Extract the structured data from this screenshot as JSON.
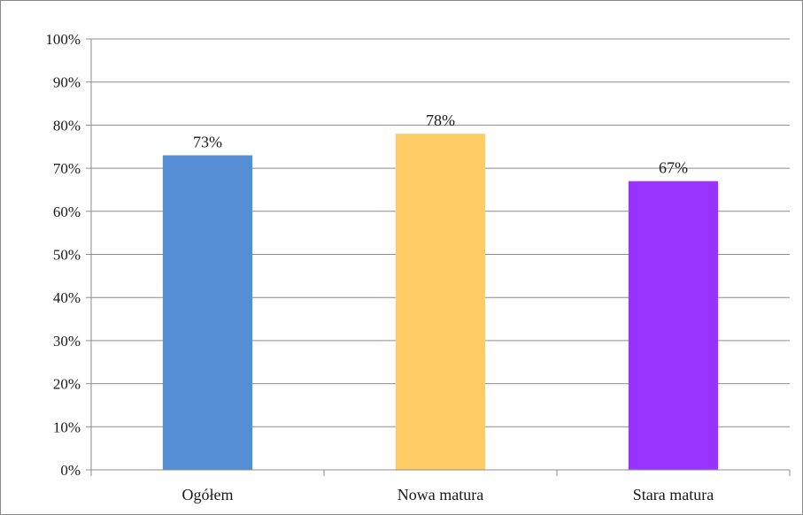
{
  "chart_data": {
    "type": "bar",
    "categories": [
      "Ogółem",
      "Nowa matura",
      "Stara matura"
    ],
    "values": [
      73,
      78,
      67
    ],
    "data_labels": [
      "73%",
      "78%",
      "67%"
    ],
    "bar_colors": [
      "#558ED5",
      "#FFCC66",
      "#9933FF"
    ],
    "ylim": [
      0,
      100
    ],
    "yticks": [
      "0%",
      "10%",
      "20%",
      "30%",
      "40%",
      "50%",
      "60%",
      "70%",
      "80%",
      "90%",
      "100%"
    ],
    "grid": true,
    "legend": "none",
    "gridline_color": "#8c8c8c"
  }
}
